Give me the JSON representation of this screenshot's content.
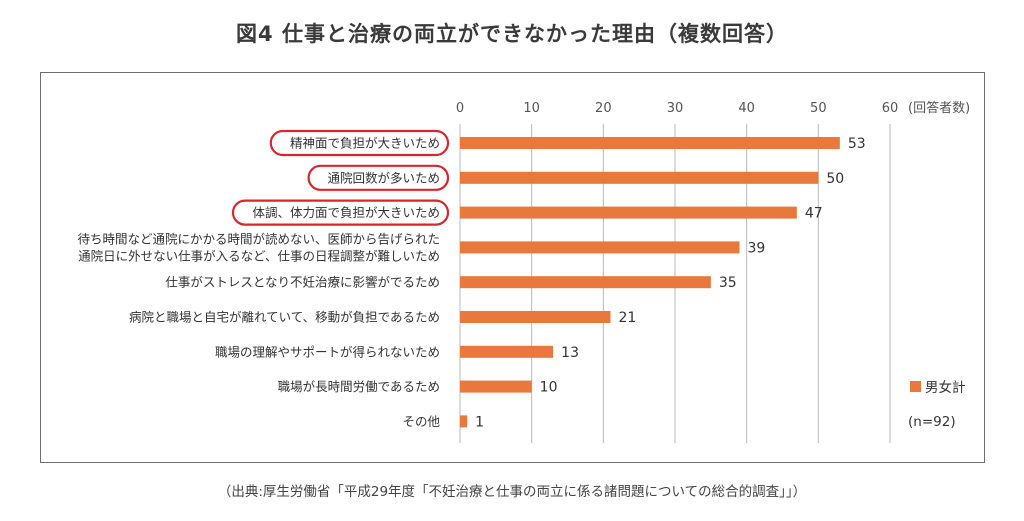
{
  "title": "図4 仕事と治療の両立ができなかった理由（複数回答）",
  "source": "（出典:厚生労働省「平成29年度「不妊治療と仕事の両立に係る諸問題についての総合的調査」」）",
  "colors": {
    "bar": "#e8783c",
    "highlight": "#d9262c",
    "grid": "#b9b9b9"
  },
  "chart_data": {
    "type": "bar",
    "orientation": "horizontal",
    "title": "図4 仕事と治療の両立ができなかった理由（複数回答）",
    "categories": [
      [
        "精神面で負担が大きいため"
      ],
      [
        "通院回数が多いため"
      ],
      [
        "体調、体力面で負担が大きいため"
      ],
      [
        "待ち時間など通院にかかる時間が読めない、医師から告げられた",
        "通院日に外せない仕事が入るなど、仕事の日程調整が難しいため"
      ],
      [
        "仕事がストレスとなり不妊治療に影響がでるため"
      ],
      [
        "病院と職場と自宅が離れていて、移動が負担であるため"
      ],
      [
        "職場の理解やサポートが得られないため"
      ],
      [
        "職場が長時間労働であるため"
      ],
      [
        "その他"
      ]
    ],
    "highlighted": [
      0,
      1,
      2
    ],
    "series": [
      {
        "name": "男女計",
        "values": [
          53,
          50,
          47,
          39,
          35,
          21,
          13,
          10,
          1
        ]
      }
    ],
    "xlim": [
      0,
      60
    ],
    "xticks": [
      0,
      10,
      20,
      30,
      40,
      50,
      60
    ],
    "axis_unit_label": "(回答者数)",
    "legend_note": "(n=92)",
    "legend_position": "bottom-right",
    "grid": true
  }
}
